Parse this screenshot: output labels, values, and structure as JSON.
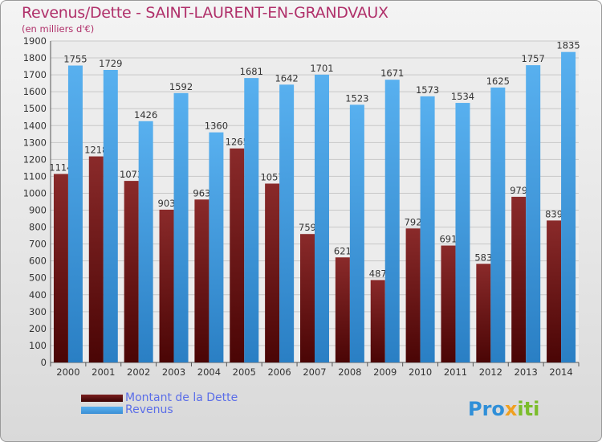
{
  "title": "Revenus/Dette - SAINT-LAURENT-EN-GRANDVAUX",
  "subtitle": "(en milliers d'€)",
  "logo_text": "Proxiti",
  "colors": {
    "dette": "#7a1e1e",
    "revenus": "#4aa3e6",
    "title": "#b0306a",
    "legend_text": "#5b6ee8"
  },
  "chart_data": {
    "type": "bar",
    "categories": [
      "2000",
      "2001",
      "2002",
      "2003",
      "2004",
      "2005",
      "2006",
      "2007",
      "2008",
      "2009",
      "2010",
      "2011",
      "2012",
      "2013",
      "2014"
    ],
    "series": [
      {
        "name": "Montant de la Dette",
        "values": [
          1114,
          1218,
          1073,
          903,
          963,
          1265,
          1057,
          759,
          621,
          487,
          792,
          691,
          583,
          979,
          839
        ],
        "labels": [
          "1114",
          "1218",
          "1073",
          "903",
          "963",
          "1265",
          "1057",
          "759",
          "621",
          "487",
          "792",
          "691",
          "583",
          "979",
          "839"
        ]
      },
      {
        "name": "Revenus",
        "values": [
          1755,
          1729,
          1426,
          1592,
          1360,
          1681,
          1642,
          1701,
          1523,
          1671,
          1573,
          1534,
          1625,
          1757,
          1835
        ],
        "labels": [
          "1755",
          "1729",
          "1426",
          "1592",
          "1360",
          "1681",
          "1642",
          "1701",
          "1523",
          "1671",
          "1573",
          "1534",
          "1625",
          "1757",
          "1835"
        ]
      }
    ],
    "ylim": [
      0,
      1900
    ],
    "yticks": [
      0,
      100,
      200,
      300,
      400,
      500,
      600,
      700,
      800,
      900,
      1000,
      1100,
      1200,
      1300,
      1400,
      1500,
      1600,
      1700,
      1800,
      1900
    ],
    "grid": true,
    "legend_position": "bottom-left"
  }
}
